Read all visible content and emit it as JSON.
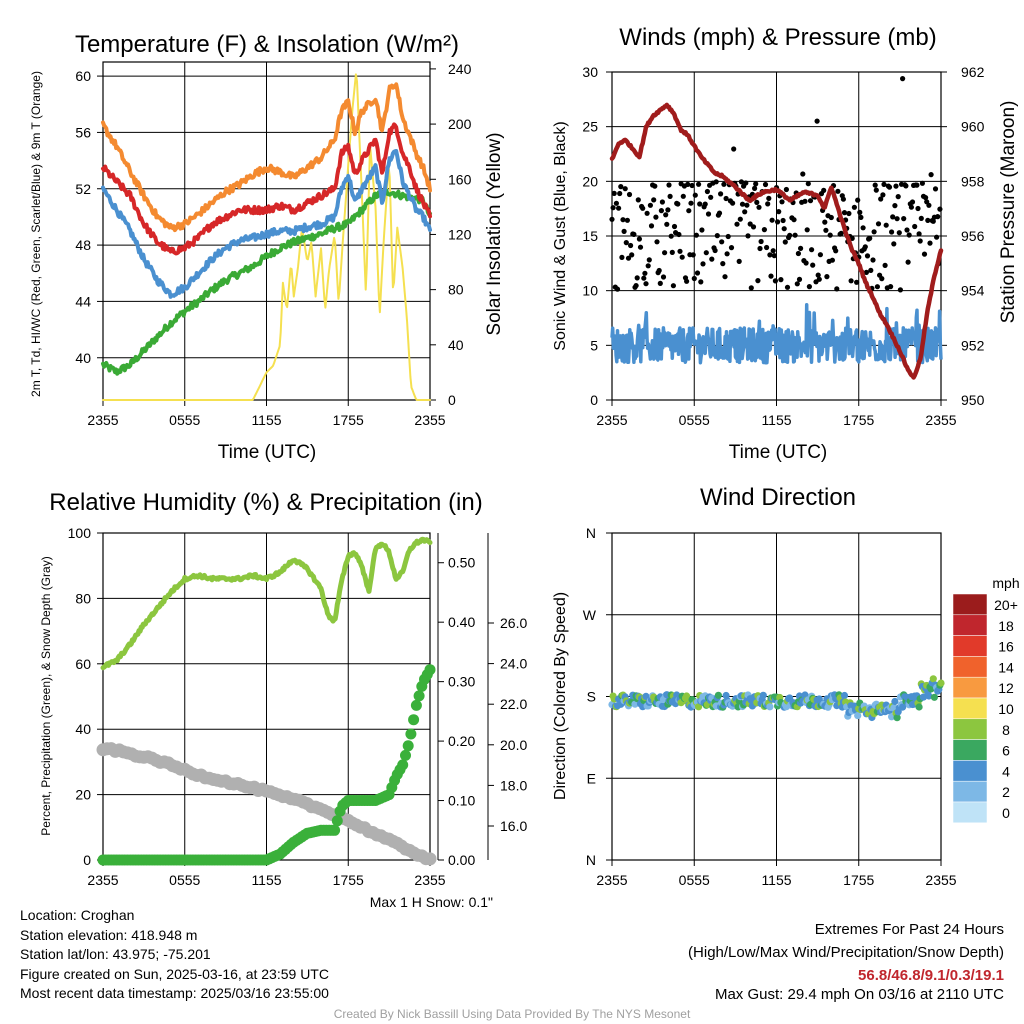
{
  "panels": {
    "temperature": {
      "title": "Temperature (F) & Insolation (W/m²)",
      "xlabel": "Time (UTC)",
      "ylabel_left": "2m T, Td, HI/WC (Red, Green, Scarlet/Blue) & 9m T (Orange)",
      "ylabel_right": "Solar Insolation (Yellow)"
    },
    "winds": {
      "title": "Winds (mph) & Pressure (mb)",
      "xlabel": "Time (UTC)",
      "ylabel_left": "Sonic Wind & Gust (Blue, Black)",
      "ylabel_right": "Station Pressure (Maroon)"
    },
    "humidity": {
      "title": "Relative Humidity (%) & Precipitation (in)",
      "ylabel_left": "Percent, Precipitation (Green), & Snow Depth (Gray)",
      "note": "Max 1 H Snow: 0.1\""
    },
    "direction": {
      "title": "Wind Direction",
      "ylabel_left": "Direction (Colored By Speed)",
      "legend_title": "mph"
    }
  },
  "info": {
    "location": "Location: Croghan",
    "elevation": "Station elevation: 418.948 m",
    "latlon": "Station lat/lon: 43.975; -75.201",
    "created": "Figure created on Sun, 2025-03-16, at 23:59 UTC",
    "recent": "Most recent data timestamp: 2025/03/16 23:55:00"
  },
  "extremes": {
    "title": "Extremes For Past 24 Hours",
    "subtitle": "(High/Low/Max Wind/Precipitation/Snow Depth)",
    "values": "56.8/46.8/9.1/0.3/19.1",
    "gust": "Max Gust: 29.4 mph On 03/16 at 2110 UTC"
  },
  "credit": "Created By Nick Bassill Using Data Provided By The NYS Mesonet",
  "colors": {
    "temp_red": "#d62728",
    "dewpoint_green": "#3aaa35",
    "windchill_blue": "#4a90d0",
    "temp9m_orange": "#f48a30",
    "insolation_yellow": "#f5e050",
    "wind_blue": "#4a90d0",
    "gust_black": "#000000",
    "pressure_maroon": "#a01c1c",
    "rh_lightgreen": "#8cc63f",
    "precip_green": "#3ab03a",
    "snow_gray": "#b0b0b0"
  },
  "chart_data": [
    {
      "id": "temperature",
      "type": "line",
      "x_ticks": [
        "2355",
        "0555",
        "1155",
        "1755",
        "2355"
      ],
      "x_range_hours": [
        0,
        24
      ],
      "ylim_left": [
        37,
        61
      ],
      "yticks_left": [
        40,
        44,
        48,
        52,
        56,
        60
      ],
      "ylim_right": [
        0,
        245
      ],
      "yticks_right": [
        0,
        40,
        80,
        120,
        160,
        200,
        240
      ],
      "series": [
        {
          "key": "temp9m",
          "axis": "left",
          "hours": [
            0,
            1,
            2,
            3,
            4,
            5,
            6,
            7,
            8,
            9,
            10,
            11,
            12,
            13,
            14,
            15,
            16,
            17,
            17.5,
            18,
            18.5,
            19,
            20,
            20.5,
            21,
            21.5,
            22,
            22.5,
            23,
            23.5,
            24
          ],
          "values": [
            56.5,
            55,
            53.2,
            51.5,
            50,
            49.2,
            49.5,
            50.2,
            51,
            51.8,
            52.3,
            53,
            53.5,
            53.2,
            52.8,
            53.5,
            54.2,
            55.5,
            57.5,
            58.2,
            56,
            57.5,
            58.5,
            56,
            59,
            59.5,
            57,
            55.8,
            54.5,
            53.5,
            52
          ]
        },
        {
          "key": "temp",
          "axis": "left",
          "hours": [
            0,
            1,
            2,
            3,
            4,
            5,
            6,
            7,
            8,
            9,
            10,
            11,
            12,
            13,
            14,
            15,
            16,
            17,
            17.5,
            18,
            18.5,
            19,
            20,
            20.5,
            21,
            21.5,
            22,
            22.5,
            23,
            23.5,
            24
          ],
          "values": [
            53.5,
            52.5,
            51.5,
            49.5,
            48.2,
            47.5,
            47.8,
            48.5,
            49.5,
            50,
            50.5,
            50.5,
            50.5,
            50.8,
            50.5,
            51,
            51.5,
            52,
            54.5,
            55,
            53,
            54,
            55.5,
            53,
            56,
            56.5,
            54.5,
            53.5,
            52,
            51,
            50
          ]
        },
        {
          "key": "windchill",
          "axis": "left",
          "hours": [
            0,
            1,
            2,
            3,
            4,
            5,
            6,
            7,
            8,
            9,
            10,
            11,
            12,
            13,
            14,
            15,
            16,
            17,
            17.5,
            18,
            18.5,
            19,
            20,
            20.5,
            21,
            21.5,
            22,
            22.5,
            23,
            23.5,
            24
          ],
          "values": [
            52,
            50.5,
            49,
            47,
            45.5,
            44.5,
            45,
            46,
            47,
            47.8,
            48.3,
            48.5,
            48.8,
            49,
            49,
            49.3,
            49.5,
            50,
            52,
            53,
            51,
            52,
            53.5,
            51,
            54,
            54.8,
            52.5,
            51.5,
            50.5,
            50,
            49
          ]
        },
        {
          "key": "dewpoint",
          "axis": "left",
          "hours": [
            0,
            1,
            2,
            3,
            4,
            5,
            6,
            7,
            8,
            9,
            10,
            11,
            12,
            13,
            14,
            15,
            16,
            17,
            18,
            19,
            20,
            21,
            22,
            23,
            23.5,
            24
          ],
          "values": [
            39.5,
            39,
            39.5,
            40.5,
            41.5,
            42.5,
            43.3,
            44,
            44.8,
            45.5,
            46,
            46.5,
            47.2,
            47.8,
            48.2,
            48.5,
            48.8,
            49.2,
            49.5,
            50.5,
            51.5,
            51.8,
            51.5,
            51.3,
            51.2,
            50
          ]
        },
        {
          "key": "insolation",
          "axis": "right",
          "hours": [
            0,
            5,
            11,
            11.5,
            12,
            12.5,
            13,
            13.2,
            13.5,
            13.8,
            14,
            14.3,
            14.6,
            15,
            15.3,
            15.6,
            16,
            16.3,
            16.6,
            17,
            17.3,
            17.6,
            18,
            18.3,
            18.6,
            19,
            19.3,
            19.6,
            20,
            20.3,
            20.6,
            21,
            21.3,
            21.6,
            22,
            22.3,
            22.6,
            23,
            24
          ],
          "values": [
            0,
            0,
            0,
            10,
            20,
            25,
            40,
            85,
            65,
            100,
            75,
            95,
            125,
            100,
            115,
            75,
            110,
            65,
            95,
            120,
            70,
            115,
            170,
            210,
            240,
            150,
            75,
            185,
            140,
            60,
            115,
            175,
            75,
            125,
            95,
            60,
            10,
            0,
            0
          ]
        }
      ]
    },
    {
      "id": "winds",
      "type": "line+scatter",
      "x_ticks": [
        "2355",
        "0555",
        "1155",
        "1755",
        "2355"
      ],
      "x_range_hours": [
        0,
        24
      ],
      "ylim_left": [
        0,
        30
      ],
      "yticks_left": [
        0,
        5,
        10,
        15,
        20,
        25,
        30
      ],
      "ylim_right": [
        950,
        962
      ],
      "yticks_right": [
        950,
        952,
        954,
        956,
        958,
        960,
        962
      ],
      "wind_mean": 5.0,
      "gust_mean": 15.0,
      "gust_max": 29.4,
      "pressure": {
        "hours": [
          0,
          0.5,
          1,
          1.5,
          2,
          2.5,
          3,
          3.5,
          4,
          4.5,
          5,
          5.5,
          6,
          6.5,
          7,
          7.5,
          8,
          9,
          10,
          11,
          12,
          13,
          14,
          15,
          15.5,
          16,
          17,
          17.5,
          18,
          18.5,
          19,
          19.5,
          20,
          20.5,
          21,
          21.5,
          22,
          22.5,
          23,
          23.5,
          24
        ],
        "values": [
          958.8,
          959.4,
          959.5,
          959.2,
          958.9,
          960.0,
          960.4,
          960.6,
          960.8,
          960.5,
          959.9,
          959.7,
          959.3,
          958.9,
          958.6,
          958.3,
          958.2,
          957.8,
          957.3,
          957.6,
          957.7,
          957.3,
          957.6,
          957.5,
          957.0,
          957.8,
          956.2,
          955.5,
          955.0,
          954.3,
          953.8,
          953.2,
          952.8,
          952.3,
          951.8,
          951.2,
          950.8,
          951.5,
          953.2,
          954.5,
          955.5
        ]
      }
    },
    {
      "id": "humidity",
      "type": "line+scatter",
      "x_ticks": [
        "2355",
        "0555",
        "1155",
        "1755",
        "2355"
      ],
      "x_range_hours": [
        0,
        24
      ],
      "ylim_left": [
        0,
        100
      ],
      "yticks_left": [
        0,
        20,
        40,
        60,
        80,
        100
      ],
      "precip_axis_ticks": [
        0.0,
        0.1,
        0.2,
        0.3,
        0.4,
        0.5
      ],
      "precip_axis_max": 0.55,
      "snow_axis_ticks": [
        16.0,
        18.0,
        20.0,
        22.0,
        24.0,
        26.0
      ],
      "series": [
        {
          "key": "rh",
          "hours": [
            0,
            1,
            2,
            3,
            4,
            5,
            6,
            7,
            8,
            9,
            10,
            11,
            12,
            13,
            14,
            15,
            16,
            16.5,
            17,
            17.5,
            18,
            18.5,
            19,
            19.5,
            20,
            20.5,
            21,
            21.5,
            22,
            22.5,
            23,
            23.5,
            24
          ],
          "values": [
            59,
            61,
            66,
            72,
            77,
            82,
            86,
            87,
            86,
            86,
            86,
            87,
            86,
            88,
            92,
            89,
            83,
            75,
            73,
            85,
            93,
            94,
            90,
            82,
            95,
            97,
            94,
            86,
            88,
            95,
            97,
            98,
            97
          ]
        },
        {
          "key": "precip",
          "hours": [
            0,
            12,
            13,
            14,
            15,
            16,
            16.5,
            17,
            17.5,
            18,
            19,
            20,
            21,
            21.5,
            22,
            22.5,
            23,
            23.5,
            24
          ],
          "values": [
            0,
            0,
            0.01,
            0.03,
            0.045,
            0.05,
            0.05,
            0.05,
            0.09,
            0.1,
            0.1,
            0.1,
            0.11,
            0.14,
            0.16,
            0.2,
            0.26,
            0.3,
            0.32
          ]
        },
        {
          "key": "snow_depth",
          "hours": [
            0,
            1,
            2,
            3,
            4,
            5,
            6,
            7,
            8,
            9,
            10,
            11,
            12,
            13,
            14,
            15,
            16,
            17,
            18,
            19,
            20,
            21,
            22,
            23,
            24
          ],
          "values": [
            34,
            33.5,
            32.5,
            31.5,
            30.5,
            29,
            27.5,
            26,
            25,
            24,
            23,
            22,
            21,
            19.5,
            18.5,
            17,
            15.5,
            14,
            12,
            10,
            8,
            6,
            4,
            2,
            0
          ]
        }
      ]
    },
    {
      "id": "direction",
      "type": "scatter",
      "x_ticks": [
        "2355",
        "0555",
        "1155",
        "1755",
        "2355"
      ],
      "x_range_hours": [
        0,
        24
      ],
      "y_ticks": [
        "N",
        "E",
        "S",
        "W",
        "N"
      ],
      "y_range_deg": [
        0,
        360
      ],
      "mean_direction_deg": 175,
      "legend_levels": [
        "20+",
        "18",
        "16",
        "14",
        "12",
        "10",
        "8",
        "6",
        "4",
        "2",
        "0"
      ],
      "legend_colors": [
        "#9b1c1c",
        "#c0262d",
        "#e13a2a",
        "#f0622c",
        "#f89a40",
        "#f5e050",
        "#8cc63f",
        "#3aa860",
        "#4a90d0",
        "#7db8e6",
        "#bfe3f7"
      ]
    }
  ]
}
